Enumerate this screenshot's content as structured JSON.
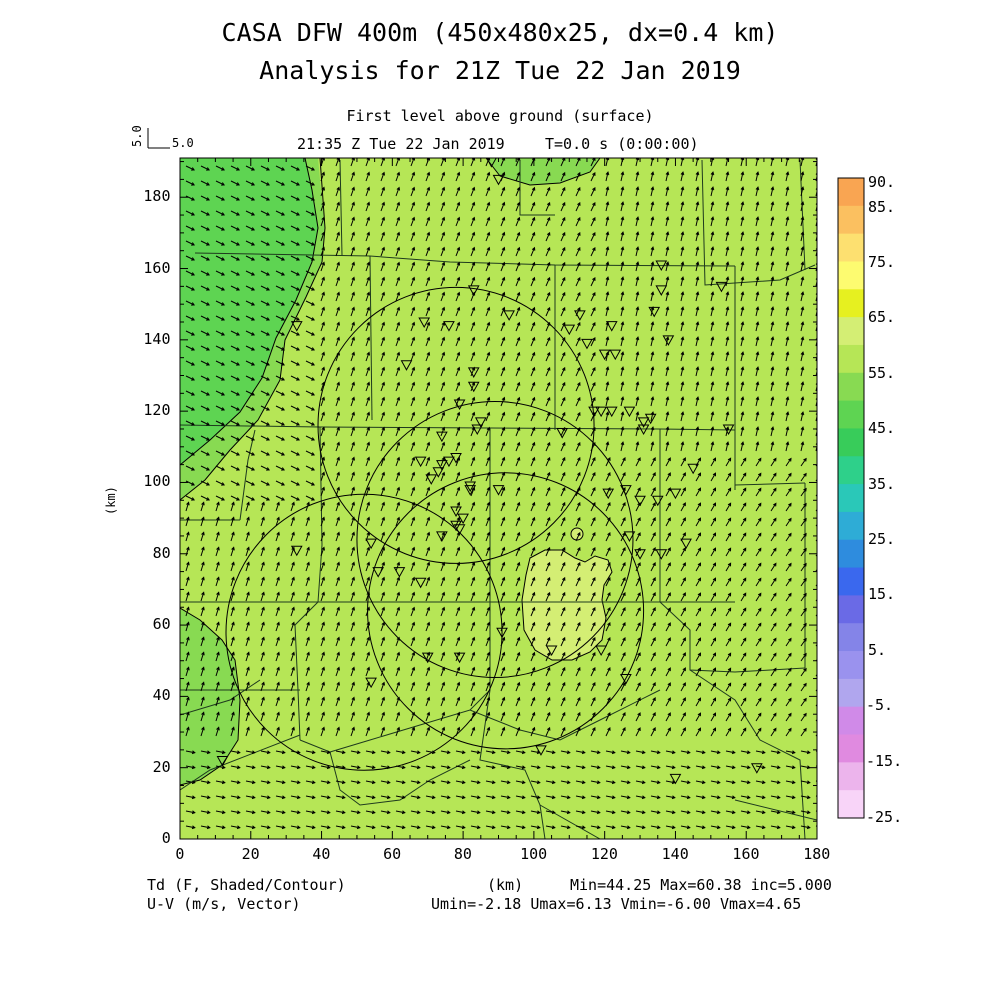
{
  "header": {
    "title_line1": "CASA DFW 400m (450x480x25, dx=0.4 km)",
    "title_line2": "Analysis for 21Z Tue 22 Jan 2019",
    "level": "First level above ground (surface)",
    "time": "21:35 Z Tue 22 Jan 2019",
    "sim_time": "T=0.0 s (0:00:00)",
    "vector_ref_label": "5.0",
    "vector_ref_value": "5.0"
  },
  "axes": {
    "xlabel": "(km)",
    "ylabel": "(km)",
    "x_ticks": [
      "0",
      "20",
      "40",
      "60",
      "80",
      "100",
      "120",
      "140",
      "160",
      "180"
    ],
    "y_ticks": [
      "0",
      "20",
      "40",
      "60",
      "80",
      "100",
      "120",
      "140",
      "160",
      "180"
    ],
    "xlim": [
      0,
      180
    ],
    "ylim": [
      0,
      191
    ]
  },
  "colorbar": {
    "labels": [
      "90.",
      "85.",
      "75.",
      "65.",
      "55.",
      "45.",
      "35.",
      "25.",
      "15.",
      "5.",
      "-5.",
      "-15.",
      "-25."
    ],
    "colors": [
      "#f9a552",
      "#fbc060",
      "#fde070",
      "#fdfb70",
      "#e6f020",
      "#d4ee74",
      "#b6e656",
      "#88da52",
      "#5ed452",
      "#38cc5a",
      "#2ed08a",
      "#2ac8b8",
      "#2eacd6",
      "#2e8cde",
      "#3a68ee",
      "#6a6ae6",
      "#8484e8",
      "#9a92ee",
      "#b0a6ee",
      "#d08ae8",
      "#e08ae0",
      "#ecb4ec",
      "#f8d4f8"
    ]
  },
  "footer": {
    "var_label": "Td (F, Shaded/Contour)",
    "vec_label": "U-V (m/s, Vector)",
    "xunit": "(km)",
    "stats1": "Min=44.25 Max=60.38 inc=5.000",
    "stats2": "Umin=-2.18 Umax=6.13 Vmin=-6.00 Vmax=4.65"
  },
  "map": {
    "field_colors": {
      "low": "#5ed452",
      "mid": "#88da52",
      "high": "#b6e656",
      "peak": "#d4ee74"
    },
    "radar_circles_km": [
      {
        "cx": 78,
        "cy": 116,
        "r": 39
      },
      {
        "cx": 89,
        "cy": 84,
        "r": 39
      },
      {
        "cx": 92,
        "cy": 64,
        "r": 39
      },
      {
        "cx": 52,
        "cy": 58,
        "r": 39
      }
    ],
    "station_markers_km": [
      [
        33,
        144
      ],
      [
        88,
        190
      ],
      [
        90,
        185
      ],
      [
        83,
        154
      ],
      [
        93,
        147
      ],
      [
        69,
        145
      ],
      [
        76,
        144
      ],
      [
        64,
        133
      ],
      [
        83,
        131
      ],
      [
        83,
        127
      ],
      [
        79,
        122
      ],
      [
        74,
        113
      ],
      [
        85,
        117
      ],
      [
        84,
        115
      ],
      [
        68,
        106
      ],
      [
        71,
        101
      ],
      [
        73,
        103
      ],
      [
        74,
        105
      ],
      [
        76,
        106
      ],
      [
        78,
        107
      ],
      [
        82,
        99
      ],
      [
        82,
        98
      ],
      [
        90,
        98
      ],
      [
        78,
        92
      ],
      [
        80,
        90
      ],
      [
        78,
        88
      ],
      [
        79,
        87
      ],
      [
        74,
        85
      ],
      [
        54,
        83
      ],
      [
        33,
        81
      ],
      [
        56,
        75
      ],
      [
        62,
        75
      ],
      [
        68,
        72
      ],
      [
        91,
        58
      ],
      [
        70,
        51
      ],
      [
        79,
        51
      ],
      [
        54,
        44
      ],
      [
        102,
        25
      ],
      [
        126,
        45
      ],
      [
        119,
        53
      ],
      [
        105,
        53
      ],
      [
        126,
        98
      ],
      [
        130,
        95
      ],
      [
        135,
        95
      ],
      [
        140,
        97
      ],
      [
        145,
        104
      ],
      [
        121,
        97
      ],
      [
        127,
        85
      ],
      [
        130,
        80
      ],
      [
        136,
        80
      ],
      [
        143,
        83
      ],
      [
        110,
        143
      ],
      [
        113,
        147
      ],
      [
        115,
        139
      ],
      [
        120,
        136
      ],
      [
        123,
        136
      ],
      [
        122,
        144
      ],
      [
        122,
        120
      ],
      [
        127,
        120
      ],
      [
        131,
        115
      ],
      [
        133,
        118
      ],
      [
        117,
        120
      ],
      [
        138,
        140
      ],
      [
        136,
        154
      ],
      [
        136,
        161
      ],
      [
        134,
        148
      ],
      [
        153,
        155
      ],
      [
        155,
        115
      ],
      [
        131,
        117
      ],
      [
        119,
        120
      ],
      [
        108,
        114
      ],
      [
        163,
        20
      ],
      [
        140,
        17
      ],
      [
        12,
        22
      ]
    ],
    "wind_units": "m/s"
  }
}
